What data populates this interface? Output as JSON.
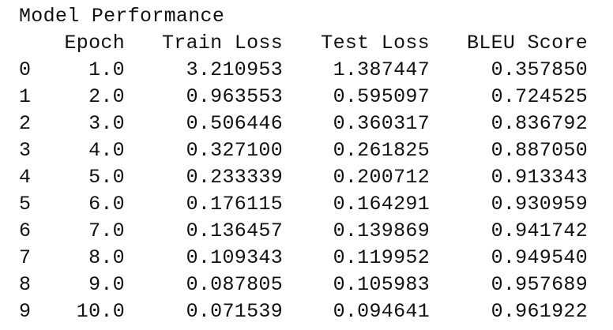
{
  "title": "Model Performance",
  "columns": [
    "Epoch",
    "Train Loss",
    "Test Loss",
    "BLEU Score"
  ],
  "rows": [
    {
      "index": "0",
      "epoch": "1.0",
      "train_loss": "3.210953",
      "test_loss": "1.387447",
      "bleu": "0.357850"
    },
    {
      "index": "1",
      "epoch": "2.0",
      "train_loss": "0.963553",
      "test_loss": "0.595097",
      "bleu": "0.724525"
    },
    {
      "index": "2",
      "epoch": "3.0",
      "train_loss": "0.506446",
      "test_loss": "0.360317",
      "bleu": "0.836792"
    },
    {
      "index": "3",
      "epoch": "4.0",
      "train_loss": "0.327100",
      "test_loss": "0.261825",
      "bleu": "0.887050"
    },
    {
      "index": "4",
      "epoch": "5.0",
      "train_loss": "0.233339",
      "test_loss": "0.200712",
      "bleu": "0.913343"
    },
    {
      "index": "5",
      "epoch": "6.0",
      "train_loss": "0.176115",
      "test_loss": "0.164291",
      "bleu": "0.930959"
    },
    {
      "index": "6",
      "epoch": "7.0",
      "train_loss": "0.136457",
      "test_loss": "0.139869",
      "bleu": "0.941742"
    },
    {
      "index": "7",
      "epoch": "8.0",
      "train_loss": "0.109343",
      "test_loss": "0.119952",
      "bleu": "0.949540"
    },
    {
      "index": "8",
      "epoch": "9.0",
      "train_loss": "0.087805",
      "test_loss": "0.105983",
      "bleu": "0.957689"
    },
    {
      "index": "9",
      "epoch": "10.0",
      "train_loss": "0.071539",
      "test_loss": "0.094641",
      "bleu": "0.961922"
    }
  ]
}
